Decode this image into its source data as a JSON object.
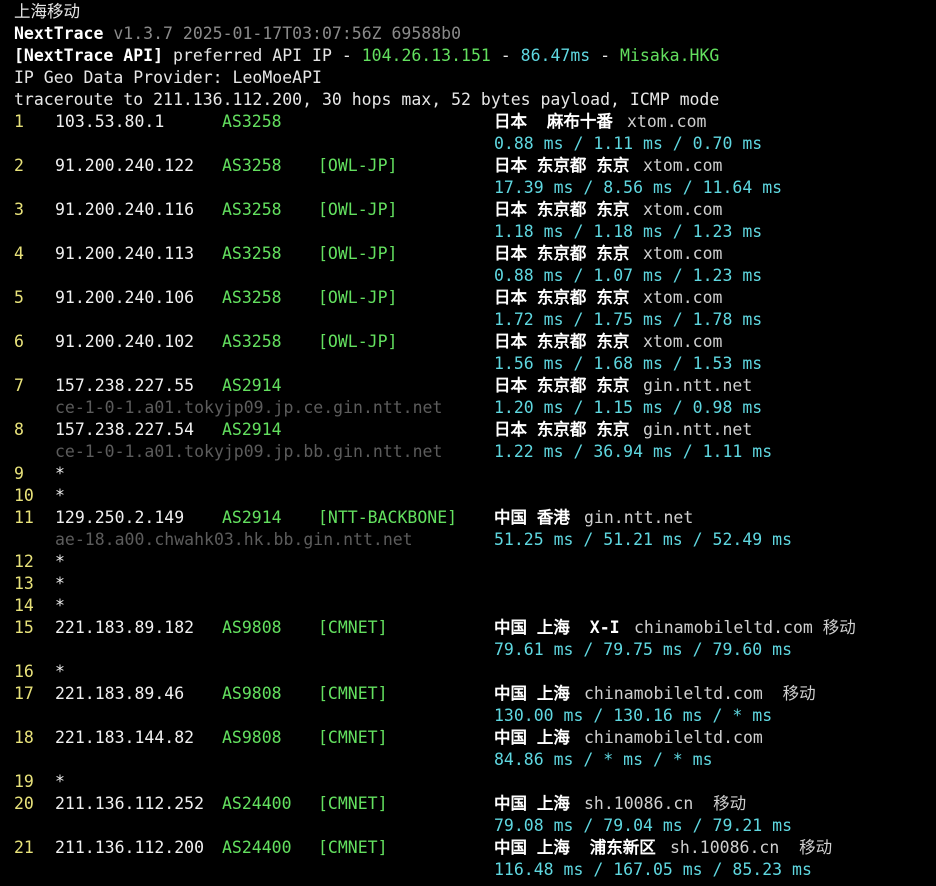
{
  "header": {
    "title": "上海移动",
    "app_name": "NextTrace",
    "version": "v1.3.7 2025-01-17T03:07:56Z 69588b0",
    "api_label": "[NextTrace API]",
    "api_text": "preferred API IP -",
    "api_ip": "104.26.13.151",
    "sep": "-",
    "api_latency": "86.47ms",
    "api_node": "Misaka.HKG",
    "geo_provider": "IP Geo Data Provider: LeoMoeAPI",
    "traceroute": "traceroute to 211.136.112.200, 30 hops max, 52 bytes payload, ICMP mode"
  },
  "colors": {
    "hop": "#e8e27a",
    "asn": "#63e05f",
    "rtt": "#5fd7e0",
    "rdns": "#5c5c5c"
  },
  "hops": [
    {
      "num": "1",
      "ip": "103.53.80.1",
      "asn": "AS3258",
      "tag": "",
      "geo": "日本  麻布十番",
      "host": "xtom.com",
      "rtt": "0.88 ms / 1.11 ms / 0.70 ms"
    },
    {
      "num": "2",
      "ip": "91.200.240.122",
      "asn": "AS3258",
      "tag": "[OWL-JP]",
      "geo": "日本 东京都 东京",
      "host": "xtom.com",
      "rtt": "17.39 ms / 8.56 ms / 11.64 ms"
    },
    {
      "num": "3",
      "ip": "91.200.240.116",
      "asn": "AS3258",
      "tag": "[OWL-JP]",
      "geo": "日本 东京都 东京",
      "host": "xtom.com",
      "rtt": "1.18 ms / 1.18 ms / 1.23 ms"
    },
    {
      "num": "4",
      "ip": "91.200.240.113",
      "asn": "AS3258",
      "tag": "[OWL-JP]",
      "geo": "日本 东京都 东京",
      "host": "xtom.com",
      "rtt": "0.88 ms / 1.07 ms / 1.23 ms"
    },
    {
      "num": "5",
      "ip": "91.200.240.106",
      "asn": "AS3258",
      "tag": "[OWL-JP]",
      "geo": "日本 东京都 东京",
      "host": "xtom.com",
      "rtt": "1.72 ms / 1.75 ms / 1.78 ms"
    },
    {
      "num": "6",
      "ip": "91.200.240.102",
      "asn": "AS3258",
      "tag": "[OWL-JP]",
      "geo": "日本 东京都 东京",
      "host": "xtom.com",
      "rtt": "1.56 ms / 1.68 ms / 1.53 ms"
    },
    {
      "num": "7",
      "ip": "157.238.227.55",
      "asn": "AS2914",
      "tag": "",
      "geo": "日本 东京都 东京",
      "host": "gin.ntt.net",
      "rdns": "ce-1-0-1.a01.tokyjp09.jp.ce.gin.ntt.net",
      "rtt": "1.20 ms / 1.15 ms / 0.98 ms"
    },
    {
      "num": "8",
      "ip": "157.238.227.54",
      "asn": "AS2914",
      "tag": "",
      "geo": "日本 东京都 东京",
      "host": "gin.ntt.net",
      "rdns": "ce-1-0-1.a01.tokyjp09.jp.bb.gin.ntt.net",
      "rtt": "1.22 ms / 36.94 ms / 1.11 ms"
    },
    {
      "num": "9",
      "ip": "*"
    },
    {
      "num": "10",
      "ip": "*"
    },
    {
      "num": "11",
      "ip": "129.250.2.149",
      "asn": "AS2914",
      "tag": "[NTT-BACKBONE]",
      "geo": "中国 香港",
      "host": "gin.ntt.net",
      "rdns": "ae-18.a00.chwahk03.hk.bb.gin.ntt.net",
      "rtt": "51.25 ms / 51.21 ms / 52.49 ms"
    },
    {
      "num": "12",
      "ip": "*"
    },
    {
      "num": "13",
      "ip": "*"
    },
    {
      "num": "14",
      "ip": "*"
    },
    {
      "num": "15",
      "ip": "221.183.89.182",
      "asn": "AS9808",
      "tag": "[CMNET]",
      "geo": "中国 上海  X-I",
      "host": "chinamobileltd.com 移动",
      "rtt": "79.61 ms / 79.75 ms / 79.60 ms"
    },
    {
      "num": "16",
      "ip": "*"
    },
    {
      "num": "17",
      "ip": "221.183.89.46",
      "asn": "AS9808",
      "tag": "[CMNET]",
      "geo": "中国 上海",
      "host": "chinamobileltd.com  移动",
      "rtt": "130.00 ms / 130.16 ms / * ms"
    },
    {
      "num": "18",
      "ip": "221.183.144.82",
      "asn": "AS9808",
      "tag": "[CMNET]",
      "geo": "中国 上海",
      "host": "chinamobileltd.com",
      "rtt": "84.86 ms / * ms / * ms"
    },
    {
      "num": "19",
      "ip": "*"
    },
    {
      "num": "20",
      "ip": "211.136.112.252",
      "asn": "AS24400",
      "tag": "[CMNET]",
      "geo": "中国 上海",
      "host": "sh.10086.cn  移动",
      "rtt": "79.08 ms / 79.04 ms / 79.21 ms"
    },
    {
      "num": "21",
      "ip": "211.136.112.200",
      "asn": "AS24400",
      "tag": "[CMNET]",
      "geo": "中国 上海  浦东新区",
      "host": "sh.10086.cn  移动",
      "rtt": "116.48 ms / 167.05 ms / 85.23 ms"
    }
  ]
}
